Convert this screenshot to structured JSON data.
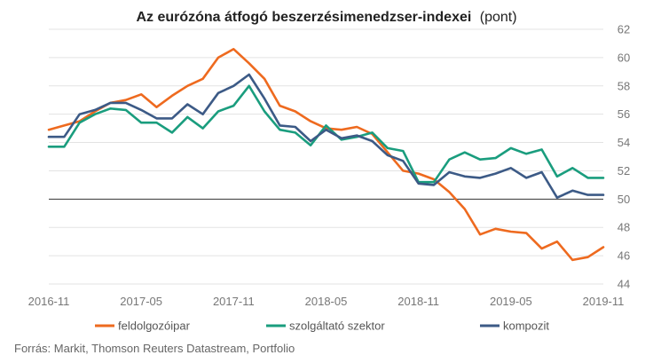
{
  "chart_data": {
    "type": "line",
    "title": "Az eurózóna átfogó beszerzésimenedzser-indexei",
    "title_unit": "(pont)",
    "xlabel": "",
    "ylabel": "",
    "ylim": [
      44,
      62
    ],
    "yticks": [
      44,
      46,
      48,
      50,
      52,
      54,
      56,
      58,
      60,
      62
    ],
    "xtick_labels": [
      "2016-11",
      "2017-05",
      "2017-11",
      "2018-05",
      "2018-11",
      "2019-05",
      "2019-11"
    ],
    "x": [
      "2016-11",
      "2016-12",
      "2017-01",
      "2017-02",
      "2017-03",
      "2017-04",
      "2017-05",
      "2017-06",
      "2017-07",
      "2017-08",
      "2017-09",
      "2017-10",
      "2017-11",
      "2017-12",
      "2018-01",
      "2018-02",
      "2018-03",
      "2018-04",
      "2018-05",
      "2018-06",
      "2018-07",
      "2018-08",
      "2018-09",
      "2018-10",
      "2018-11",
      "2018-12",
      "2019-01",
      "2019-02",
      "2019-03",
      "2019-04",
      "2019-05",
      "2019-06",
      "2019-07",
      "2019-08",
      "2019-09",
      "2019-10",
      "2019-11"
    ],
    "grid": "horizontal",
    "legend_position": "bottom",
    "series": [
      {
        "name": "feldolgozóipar",
        "color": "#ee6a1f",
        "values": [
          54.9,
          55.2,
          55.5,
          56.2,
          56.8,
          57.0,
          57.4,
          56.5,
          57.3,
          58.0,
          58.5,
          60.0,
          60.6,
          59.6,
          58.5,
          56.6,
          56.2,
          55.5,
          55.0,
          54.9,
          55.1,
          54.6,
          53.3,
          52.0,
          51.8,
          51.4,
          50.5,
          49.3,
          47.5,
          47.9,
          47.7,
          47.6,
          46.5,
          47.0,
          45.7,
          45.9,
          46.6
        ]
      },
      {
        "name": "szolgáltató szektor",
        "color": "#1a9d7e",
        "values": [
          53.7,
          53.7,
          55.4,
          56.0,
          56.4,
          56.3,
          55.4,
          55.4,
          54.7,
          55.8,
          55.0,
          56.2,
          56.6,
          58.0,
          56.2,
          54.9,
          54.7,
          53.8,
          55.2,
          54.2,
          54.4,
          54.7,
          53.6,
          53.4,
          51.2,
          51.2,
          52.8,
          53.3,
          52.8,
          52.9,
          53.6,
          53.2,
          53.5,
          51.6,
          52.2,
          51.5,
          51.5
        ]
      },
      {
        "name": "kompozit",
        "color": "#3c5a86",
        "values": [
          54.4,
          54.4,
          56.0,
          56.3,
          56.8,
          56.8,
          56.3,
          55.7,
          55.7,
          56.7,
          56.0,
          57.5,
          58.0,
          58.8,
          57.1,
          55.2,
          55.1,
          54.1,
          54.9,
          54.3,
          54.5,
          54.1,
          53.1,
          52.7,
          51.1,
          51.0,
          51.9,
          51.6,
          51.5,
          51.8,
          52.2,
          51.5,
          51.9,
          50.1,
          50.6,
          50.3,
          50.3
        ]
      }
    ]
  },
  "source": "Forrás: Markit, Thomson Reuters Datastream, Portfolio"
}
